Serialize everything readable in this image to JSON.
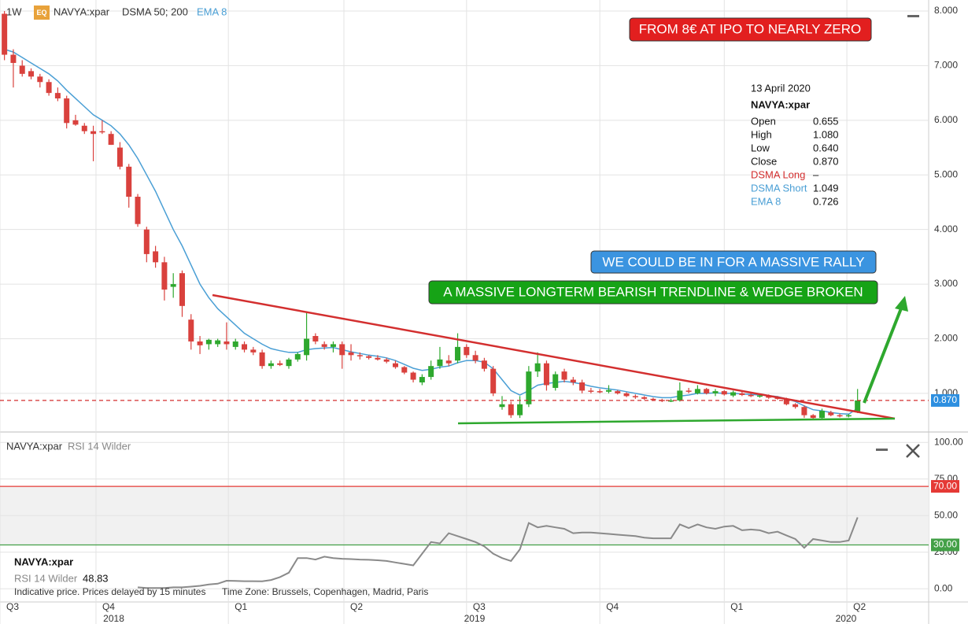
{
  "header": {
    "interval": "1W",
    "badge": "EQ",
    "symbol": "NAVYA:xpar",
    "dsma": "DSMA 50; 200"
  },
  "annotations": {
    "ipo": "FROM 8€ AT IPO TO NEARLY ZERO",
    "rally": "WE COULD BE IN FOR A MASSIVE RALLY",
    "breakout": "A MASSIVE LONGTERM BEARISH TRENDLINE & WEDGE BROKEN"
  },
  "readout": {
    "date": "13 April 2020",
    "symbol": "NAVYA:xpar",
    "rows": [
      [
        "Open",
        "0.655"
      ],
      [
        "High",
        "1.080"
      ],
      [
        "Low",
        "0.640"
      ],
      [
        "Close",
        "0.870"
      ],
      [
        "DSMA Long",
        "–"
      ],
      [
        "DSMA Short",
        "1.049"
      ],
      [
        "EMA 8",
        "0.726"
      ]
    ]
  },
  "footer": {
    "symbol": "NAVYA:xpar",
    "note": "Indicative price. Prices delayed by 15 minutes",
    "timezone": "Time Zone: Brussels, Copenhagen, Madrid, Paris"
  },
  "chart_data": [
    {
      "type": "candlestick",
      "up_color": "#2ea82e",
      "down_color": "#d9413d",
      "grid": true,
      "xlim": [
        -0.5,
        104
      ],
      "ylim": [
        0.35,
        8.13
      ],
      "yticks": [
        {
          "value": 1,
          "label": "1.000"
        },
        {
          "value": 2,
          "label": "2.000"
        },
        {
          "value": 3,
          "label": "3.000"
        },
        {
          "value": 4,
          "label": "4.000"
        },
        {
          "value": 5,
          "label": "5.000"
        },
        {
          "value": 6,
          "label": "6.000"
        },
        {
          "value": 7,
          "label": "7.000"
        },
        {
          "value": 8,
          "label": "8.000"
        }
      ],
      "xticks": [
        {
          "value": -0.5,
          "label": "Q3"
        },
        {
          "value": 10.3,
          "label": "Q4"
        },
        {
          "value": 25.2,
          "label": "Q1"
        },
        {
          "value": 38.2,
          "label": "Q2"
        },
        {
          "value": 52,
          "label": "Q3"
        },
        {
          "value": 67,
          "label": "Q4"
        },
        {
          "value": 81,
          "label": "Q1"
        },
        {
          "value": 94.8,
          "label": "Q2"
        }
      ],
      "year_ticks": [
        {
          "value": 12.3,
          "label": "2018"
        },
        {
          "value": 52.9,
          "label": "2019"
        },
        {
          "value": 94.7,
          "label": "2020"
        }
      ],
      "last_price": {
        "value": 0.87,
        "label": "0.870",
        "color": "#d32f2f",
        "box_color": "#2d8fe0"
      },
      "open": [
        7.95,
        7.2,
        7.0,
        6.9,
        6.8,
        6.7,
        6.5,
        6.4,
        6.0,
        5.9,
        5.8,
        5.8,
        5.75,
        5.5,
        5.15,
        4.6,
        4.0,
        3.6,
        3.4,
        2.95,
        3.2,
        2.35,
        1.95,
        1.9,
        1.9,
        1.95,
        1.85,
        1.9,
        1.8,
        1.75,
        1.5,
        1.55,
        1.5,
        1.62,
        1.7,
        2.05,
        1.9,
        1.85,
        1.9,
        1.75,
        1.7,
        1.68,
        1.65,
        1.62,
        1.55,
        1.48,
        1.38,
        1.2,
        1.3,
        1.5,
        1.6,
        1.6,
        1.85,
        1.7,
        1.6,
        1.45,
        0.75,
        0.8,
        0.6,
        0.8,
        1.4,
        1.55,
        1.1,
        1.4,
        1.25,
        1.2,
        1.05,
        1.04,
        1.03,
        1.04,
        1.0,
        0.95,
        0.93,
        0.9,
        0.88,
        0.86,
        0.87,
        1.05,
        1.0,
        1.08,
        1.0,
        1.04,
        0.96,
        1.0,
        0.97,
        0.95,
        0.96,
        0.92,
        0.9,
        0.8,
        0.75,
        0.6,
        0.55,
        0.65,
        0.6,
        0.58,
        0.655
      ],
      "high": [
        8.0,
        7.3,
        7.1,
        6.95,
        6.85,
        6.75,
        6.6,
        6.45,
        6.1,
        5.95,
        5.9,
        6.0,
        5.8,
        5.6,
        5.2,
        4.65,
        4.05,
        3.7,
        3.5,
        3.2,
        3.25,
        2.45,
        2.05,
        2.0,
        2.0,
        2.3,
        2.0,
        1.95,
        1.85,
        1.8,
        1.6,
        1.6,
        1.65,
        1.75,
        2.5,
        2.1,
        1.95,
        1.95,
        1.95,
        1.9,
        1.75,
        1.7,
        1.7,
        1.65,
        1.6,
        1.5,
        1.4,
        1.35,
        1.6,
        1.85,
        1.7,
        2.1,
        1.9,
        1.78,
        1.65,
        1.5,
        0.95,
        0.85,
        0.95,
        1.5,
        1.75,
        1.6,
        1.4,
        1.45,
        1.3,
        1.25,
        1.1,
        1.08,
        1.15,
        1.06,
        1.02,
        0.98,
        0.95,
        0.92,
        0.9,
        0.9,
        1.2,
        1.1,
        1.15,
        1.1,
        1.08,
        1.06,
        1.05,
        1.03,
        1.0,
        0.98,
        0.98,
        0.95,
        0.92,
        0.82,
        0.78,
        0.62,
        0.72,
        0.68,
        0.63,
        0.62,
        1.08
      ],
      "low": [
        7.1,
        6.6,
        6.8,
        6.75,
        6.6,
        6.45,
        6.35,
        5.85,
        5.9,
        5.75,
        5.25,
        5.75,
        5.55,
        5.1,
        4.4,
        4.05,
        3.4,
        3.3,
        2.7,
        2.75,
        2.4,
        1.8,
        1.72,
        1.8,
        1.85,
        1.8,
        1.8,
        1.75,
        1.7,
        1.45,
        1.45,
        1.5,
        1.45,
        1.58,
        1.6,
        1.9,
        1.8,
        1.75,
        1.45,
        1.6,
        1.62,
        1.62,
        1.6,
        1.55,
        1.45,
        1.35,
        1.2,
        1.15,
        1.25,
        1.45,
        1.5,
        1.55,
        1.65,
        1.55,
        1.4,
        0.95,
        0.7,
        0.55,
        0.55,
        0.75,
        1.3,
        1.05,
        1.05,
        1.2,
        1.15,
        1.0,
        1.0,
        1.0,
        1.0,
        0.98,
        0.93,
        0.9,
        0.88,
        0.86,
        0.84,
        0.84,
        0.85,
        1.0,
        0.98,
        0.98,
        0.95,
        0.96,
        0.93,
        0.95,
        0.93,
        0.92,
        0.9,
        0.88,
        0.78,
        0.72,
        0.55,
        0.52,
        0.52,
        0.58,
        0.56,
        0.56,
        0.64
      ],
      "close": [
        7.2,
        7.05,
        6.85,
        6.8,
        6.7,
        6.5,
        6.4,
        5.95,
        5.92,
        5.8,
        5.75,
        5.78,
        5.55,
        5.15,
        4.6,
        4.1,
        3.55,
        3.4,
        2.9,
        3.0,
        2.6,
        1.95,
        1.88,
        1.98,
        1.97,
        1.9,
        1.95,
        1.8,
        1.75,
        1.5,
        1.55,
        1.52,
        1.62,
        1.72,
        2.0,
        1.95,
        1.85,
        1.9,
        1.7,
        1.7,
        1.68,
        1.65,
        1.62,
        1.58,
        1.48,
        1.38,
        1.25,
        1.3,
        1.5,
        1.62,
        1.55,
        1.85,
        1.7,
        1.6,
        1.45,
        1.0,
        0.8,
        0.6,
        0.8,
        1.4,
        1.55,
        1.15,
        1.35,
        1.25,
        1.2,
        1.05,
        1.04,
        1.03,
        1.06,
        1.0,
        0.95,
        0.93,
        0.9,
        0.88,
        0.86,
        0.87,
        1.05,
        1.03,
        1.08,
        1.0,
        1.04,
        0.98,
        1.02,
        0.97,
        0.95,
        0.96,
        0.92,
        0.9,
        0.8,
        0.75,
        0.6,
        0.55,
        0.68,
        0.6,
        0.58,
        0.6,
        0.87
      ],
      "series": [
        {
          "name": "EMA 8",
          "color": "#4a9fd5",
          "values": [
            7.3,
            7.25,
            7.15,
            7.05,
            6.95,
            6.85,
            6.72,
            6.55,
            6.4,
            6.25,
            6.1,
            6.0,
            5.9,
            5.75,
            5.55,
            5.3,
            5.0,
            4.7,
            4.35,
            4.0,
            3.7,
            3.35,
            3.0,
            2.75,
            2.55,
            2.4,
            2.25,
            2.1,
            2.0,
            1.9,
            1.82,
            1.78,
            1.75,
            1.75,
            1.8,
            1.82,
            1.83,
            1.84,
            1.8,
            1.76,
            1.73,
            1.7,
            1.68,
            1.65,
            1.6,
            1.53,
            1.46,
            1.42,
            1.44,
            1.48,
            1.5,
            1.56,
            1.6,
            1.6,
            1.57,
            1.45,
            1.25,
            1.05,
            0.97,
            1.05,
            1.15,
            1.18,
            1.2,
            1.22,
            1.2,
            1.17,
            1.13,
            1.1,
            1.08,
            1.06,
            1.03,
            1.0,
            0.97,
            0.94,
            0.92,
            0.92,
            0.95,
            0.97,
            1.0,
            1.0,
            1.01,
            1.0,
            1.0,
            0.99,
            0.98,
            0.97,
            0.96,
            0.94,
            0.9,
            0.85,
            0.77,
            0.7,
            0.68,
            0.65,
            0.63,
            0.62,
            0.726
          ]
        }
      ]
    },
    {
      "type": "line",
      "title": "NAVYA:xpar",
      "subtitle": "RSI 14 Wilder",
      "grid": true,
      "xlim": [
        -0.5,
        104
      ],
      "ylim": [
        -9,
        105
      ],
      "yticks": [
        {
          "value": 0,
          "label": "0.00"
        },
        {
          "value": 25,
          "label": "25.00"
        },
        {
          "value": 50,
          "label": "50.00"
        },
        {
          "value": 75,
          "label": "75.00"
        },
        {
          "value": 100,
          "label": "100.00"
        }
      ],
      "levels": [
        {
          "value": 70,
          "label": "70.00",
          "color": "#e53935"
        },
        {
          "value": 30,
          "label": "30.00",
          "color": "#43a047"
        }
      ],
      "band_color": "#f1f1f1",
      "series": [
        {
          "name": "RSI 14 Wilder",
          "color": "#8a8a8a",
          "values": [
            null,
            null,
            null,
            null,
            null,
            null,
            null,
            null,
            null,
            null,
            null,
            null,
            null,
            null,
            null,
            1,
            0.5,
            0.5,
            0.5,
            1,
            1,
            1.5,
            2,
            3,
            3.5,
            5.5,
            5.4,
            5.2,
            5.2,
            5.1,
            6,
            8,
            11,
            21,
            21,
            20,
            22,
            21,
            20.5,
            20.3,
            20,
            19.8,
            19.5,
            19,
            18,
            17,
            16,
            24,
            32,
            31,
            38,
            36,
            34,
            32,
            29,
            24,
            21,
            19,
            27,
            45,
            42,
            43,
            42,
            41,
            38,
            38.5,
            38.5,
            38,
            37.5,
            37,
            36.5,
            36,
            35,
            34.5,
            34.5,
            34.5,
            44,
            41.5,
            44,
            42,
            41,
            42.5,
            43,
            40,
            40.5,
            40,
            38,
            39,
            36.5,
            34,
            28,
            34,
            33,
            32,
            32,
            33,
            48.83
          ]
        }
      ]
    }
  ]
}
